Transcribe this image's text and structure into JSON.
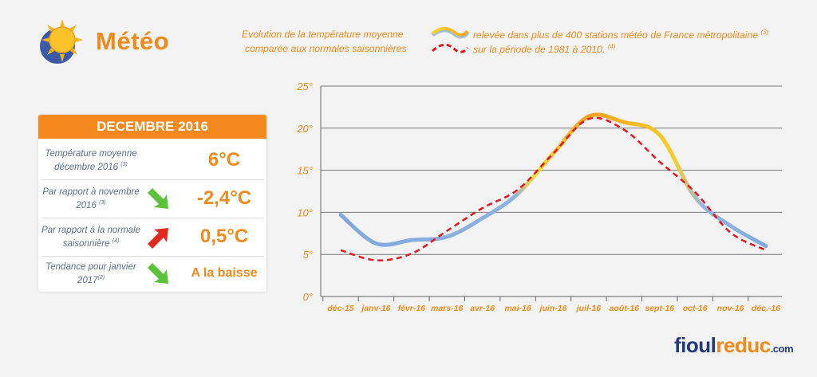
{
  "header": {
    "title": "Météo",
    "icon": "sun-icon"
  },
  "legend": {
    "line1": "Evolution de la température moyenne",
    "line1_right": "relevée dans plus de 400 stations météo de France métropolitaine",
    "sup1": "(3)",
    "line2": "comparée aux normales saisonnières",
    "line2_right": "sur la période de 1981 à 2010.",
    "sup2": "(4)"
  },
  "panel": {
    "title": "DECEMBRE 2016",
    "rows": [
      {
        "label": "Température moyenne décembre 2016",
        "sup": "(3)",
        "value": "6°C",
        "arrow": ""
      },
      {
        "label": "Par rapport à novembre 2016",
        "sup": "(3)",
        "value": "-2,4°C",
        "arrow": "green-down-arrow-icon"
      },
      {
        "label": "Par rapport à la normale saisonnière",
        "sup": "(4)",
        "value": "0,5°C",
        "arrow": "red-up-arrow-icon"
      },
      {
        "label": "Tendance pour janvier 2017",
        "sup": "(2)",
        "value": "A la baisse",
        "arrow": "green-down-arrow-icon"
      }
    ]
  },
  "brand": {
    "part1": "fioul",
    "part2": "reduc",
    "domain": ".com"
  },
  "colors": {
    "accent": "#f08a1a",
    "actual_cold": "#7ea7dc",
    "actual_warm": "#f5a623",
    "normal": "#e8141e"
  },
  "chart_data": {
    "type": "line",
    "categories": [
      "déc-15",
      "janv-16",
      "févr-16",
      "mars-16",
      "avr-16",
      "mai-16",
      "juin-16",
      "juil-16",
      "août-16",
      "sept-16",
      "oct-16",
      "nov-16",
      "déc.-16"
    ],
    "series": [
      {
        "values": [
          9.7,
          6.3,
          6.7,
          7.1,
          9.3,
          12.2,
          17.0,
          21.4,
          20.7,
          19.2,
          11.8,
          8.4,
          6.0
        ]
      },
      {
        "values": [
          5.5,
          4.3,
          5.1,
          7.8,
          10.5,
          12.7,
          17.0,
          21.1,
          19.8,
          16.0,
          12.4,
          7.6,
          5.5
        ]
      }
    ],
    "ylim": [
      0,
      25
    ],
    "yticks": [
      "0°",
      "5°",
      "10°",
      "15°",
      "20°",
      "25°"
    ],
    "grid": true
  }
}
